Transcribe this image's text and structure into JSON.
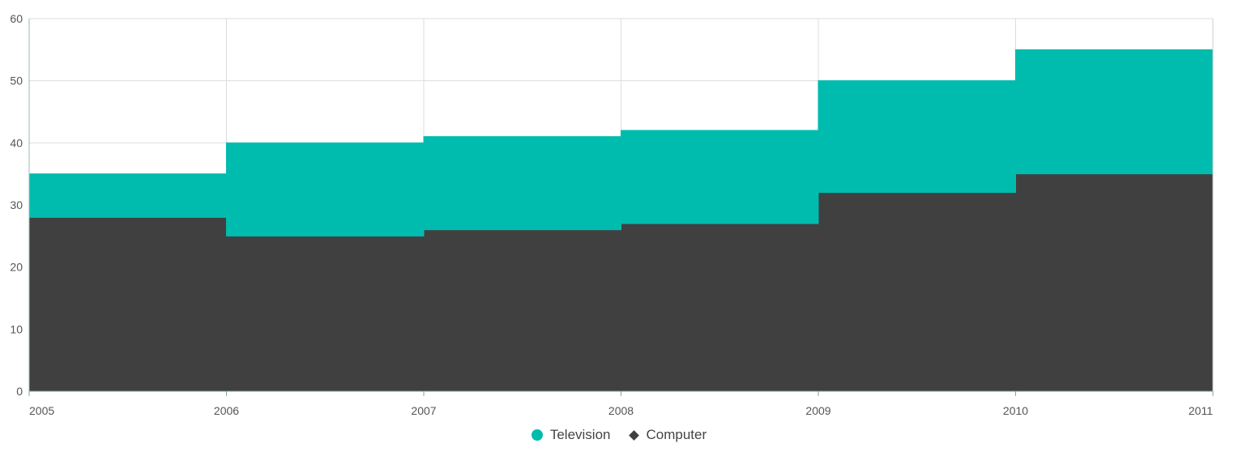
{
  "chart_data": {
    "type": "area",
    "subtype": "stacked-step",
    "x": [
      "2005",
      "2006",
      "2007",
      "2008",
      "2009",
      "2010",
      "2011"
    ],
    "series": [
      {
        "name": "Computer",
        "values": [
          28,
          25,
          26,
          27,
          32,
          35,
          35
        ],
        "color": "#404040",
        "marker": "diamond"
      },
      {
        "name": "Television",
        "values": [
          7,
          15,
          15,
          15,
          18,
          20,
          20
        ],
        "color": "#00bcaf",
        "marker": "circle"
      }
    ],
    "ylim": [
      0,
      60
    ],
    "yticks": [
      0,
      10,
      20,
      30,
      40,
      50,
      60
    ],
    "grid": true,
    "legend": "bottom-center",
    "title": "",
    "xlabel": "",
    "ylabel": ""
  },
  "legend_items": [
    {
      "label": "Television",
      "color": "#00bcaf",
      "marker": "circle"
    },
    {
      "label": "Computer",
      "color": "#404040",
      "marker": "diamond"
    }
  ]
}
